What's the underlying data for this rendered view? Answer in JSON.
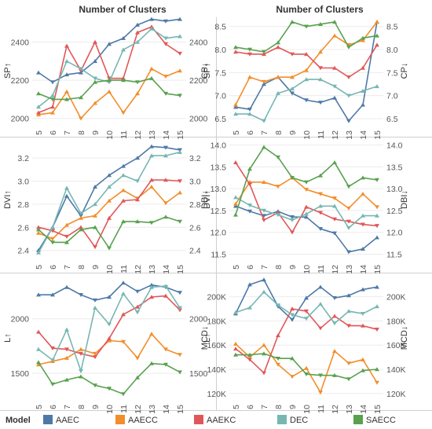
{
  "column_titles": [
    "Number of Clusters",
    "Number of Clusters"
  ],
  "legend": {
    "title": "Model",
    "items": [
      {
        "name": "AAEC",
        "color": "#4e79a7"
      },
      {
        "name": "AAECC",
        "color": "#f28e2b"
      },
      {
        "name": "AAEKC",
        "color": "#e15759"
      },
      {
        "name": "DEC",
        "color": "#76b7b2"
      },
      {
        "name": "SAECC",
        "color": "#59a14f"
      }
    ]
  },
  "chart_data": [
    {
      "type": "line",
      "ylabel": "SP↑",
      "x": [
        5,
        6,
        7,
        8,
        9,
        10,
        11,
        12,
        13,
        14,
        15
      ],
      "ylim": [
        1970,
        2530
      ],
      "yticks": [
        2000,
        2200,
        2400
      ],
      "ytick_labels": [
        "2000",
        "2200",
        "2400"
      ],
      "series": [
        {
          "name": "AAEC",
          "values": [
            2240,
            2190,
            2230,
            2240,
            2300,
            2390,
            2420,
            2490,
            2520,
            2510,
            2520
          ]
        },
        {
          "name": "AAECC",
          "values": [
            2020,
            2030,
            2140,
            2000,
            2080,
            2140,
            2030,
            2130,
            2260,
            2220,
            2250
          ]
        },
        {
          "name": "AAEKC",
          "values": [
            2030,
            2060,
            2380,
            2250,
            2400,
            2210,
            2210,
            2450,
            2480,
            2390,
            2340
          ]
        },
        {
          "name": "DEC",
          "values": [
            2060,
            2120,
            2300,
            2260,
            2210,
            2190,
            2360,
            2400,
            2470,
            2420,
            2430
          ]
        },
        {
          "name": "SAECC",
          "values": [
            2130,
            2100,
            2100,
            2110,
            2190,
            2200,
            2200,
            2190,
            2210,
            2130,
            2120
          ]
        }
      ]
    },
    {
      "type": "line",
      "ylabel": "CP↓",
      "x": [
        5,
        6,
        7,
        8,
        9,
        10,
        11,
        12,
        13,
        14,
        15
      ],
      "ylim": [
        6.38,
        8.7
      ],
      "yticks": [
        6.5,
        7.0,
        7.5,
        8.0,
        8.5
      ],
      "ytick_labels": [
        "6.5",
        "7.0",
        "7.5",
        "8.0",
        "8.5"
      ],
      "series": [
        {
          "name": "AAEC",
          "values": [
            6.75,
            6.7,
            7.25,
            7.4,
            7.05,
            6.9,
            6.85,
            6.95,
            6.45,
            6.8,
            8.6
          ]
        },
        {
          "name": "AAECC",
          "values": [
            6.8,
            7.4,
            7.3,
            7.4,
            7.4,
            7.55,
            7.95,
            8.3,
            8.1,
            8.2,
            8.6
          ]
        },
        {
          "name": "AAEKC",
          "values": [
            7.95,
            7.9,
            7.9,
            8.05,
            7.9,
            7.9,
            7.6,
            7.6,
            7.4,
            7.6,
            8.1
          ]
        },
        {
          "name": "DEC",
          "values": [
            6.6,
            6.6,
            6.45,
            7.05,
            7.15,
            7.35,
            7.35,
            7.2,
            7.0,
            7.1,
            7.2
          ]
        },
        {
          "name": "SAECC",
          "values": [
            8.05,
            8.0,
            7.95,
            8.15,
            8.6,
            8.5,
            8.55,
            8.6,
            8.05,
            8.25,
            8.3
          ]
        }
      ]
    },
    {
      "type": "line",
      "ylabel": "DVI↑",
      "x": [
        5,
        6,
        7,
        8,
        9,
        10,
        11,
        12,
        13,
        14,
        15
      ],
      "ylim": [
        2.33,
        3.35
      ],
      "yticks": [
        2.4,
        2.6,
        2.8,
        3.0,
        3.2
      ],
      "ytick_labels": [
        "2.4",
        "2.6",
        "2.8",
        "3.0",
        "3.2"
      ],
      "series": [
        {
          "name": "AAEC",
          "values": [
            2.4,
            2.6,
            2.87,
            2.7,
            2.95,
            3.05,
            3.13,
            3.2,
            3.3,
            3.29,
            3.27
          ]
        },
        {
          "name": "AAECC",
          "values": [
            2.55,
            2.5,
            2.62,
            2.68,
            2.7,
            2.83,
            2.92,
            2.85,
            2.95,
            2.81,
            2.9
          ]
        },
        {
          "name": "AAEKC",
          "values": [
            2.6,
            2.57,
            2.52,
            2.6,
            2.43,
            2.68,
            2.83,
            2.84,
            3.01,
            3.01,
            3.0
          ]
        },
        {
          "name": "DEC",
          "values": [
            2.38,
            2.6,
            2.94,
            2.72,
            2.8,
            2.95,
            3.05,
            3.0,
            3.22,
            3.22,
            3.25
          ]
        },
        {
          "name": "SAECC",
          "values": [
            2.58,
            2.47,
            2.47,
            2.58,
            2.6,
            2.42,
            2.65,
            2.65,
            2.64,
            2.69,
            2.65
          ]
        }
      ]
    },
    {
      "type": "line",
      "ylabel": "DBI↓",
      "x": [
        5,
        6,
        7,
        8,
        9,
        10,
        11,
        12,
        13,
        14,
        15
      ],
      "ylim": [
        11.4,
        14.1
      ],
      "yticks": [
        11.5,
        12.0,
        12.5,
        13.0,
        13.5,
        14.0
      ],
      "ytick_labels": [
        "11.5",
        "12.0",
        "12.5",
        "13.0",
        "13.5",
        "14.0"
      ],
      "series": [
        {
          "name": "AAEC",
          "values": [
            12.6,
            12.48,
            12.38,
            12.48,
            12.35,
            12.35,
            12.08,
            11.98,
            11.55,
            11.62,
            11.88
          ]
        },
        {
          "name": "AAECC",
          "values": [
            12.65,
            13.15,
            13.15,
            13.05,
            13.25,
            12.98,
            12.88,
            12.78,
            12.55,
            12.88,
            12.58
          ]
        },
        {
          "name": "AAEKC",
          "values": [
            13.6,
            13.1,
            12.28,
            12.45,
            12.0,
            12.58,
            12.45,
            12.3,
            12.25,
            12.18,
            12.15
          ]
        },
        {
          "name": "DEC",
          "values": [
            12.8,
            12.62,
            12.5,
            12.4,
            12.28,
            12.42,
            12.6,
            12.6,
            12.1,
            12.38,
            12.38
          ]
        },
        {
          "name": "SAECC",
          "values": [
            12.4,
            13.45,
            13.95,
            13.72,
            13.25,
            13.15,
            13.3,
            13.6,
            13.05,
            13.25,
            13.2
          ]
        }
      ]
    },
    {
      "type": "line",
      "ylabel": "L↑",
      "x": [
        5,
        6,
        7,
        8,
        9,
        10,
        11,
        12,
        13,
        14,
        15
      ],
      "ylim": [
        1270,
        2380
      ],
      "yticks": [
        1500,
        2000
      ],
      "ytick_labels": [
        "1500",
        "2000"
      ],
      "series": [
        {
          "name": "AAEC",
          "values": [
            2220,
            2220,
            2290,
            2220,
            2170,
            2200,
            2330,
            2250,
            2310,
            2290,
            2240
          ]
        },
        {
          "name": "AAECC",
          "values": [
            1580,
            1610,
            1640,
            1720,
            1680,
            1800,
            1790,
            1640,
            1860,
            1720,
            1670
          ]
        },
        {
          "name": "AAEKC",
          "values": [
            1880,
            1730,
            1720,
            1680,
            1650,
            1820,
            2040,
            2110,
            2200,
            2210,
            2080
          ]
        },
        {
          "name": "DEC",
          "values": [
            1720,
            1620,
            1900,
            1520,
            2100,
            1950,
            2230,
            2060,
            2290,
            2300,
            2100
          ]
        },
        {
          "name": "SAECC",
          "values": [
            1600,
            1400,
            1440,
            1470,
            1390,
            1360,
            1310,
            1460,
            1590,
            1580,
            1510
          ]
        }
      ]
    },
    {
      "type": "line",
      "ylabel": "MCD↓",
      "x": [
        5,
        6,
        7,
        8,
        9,
        10,
        11,
        12,
        13,
        14,
        15
      ],
      "ylim": [
        116000,
        216000
      ],
      "yticks": [
        120000,
        140000,
        160000,
        180000,
        200000
      ],
      "ytick_labels": [
        "120K",
        "140K",
        "160K",
        "180K",
        "200K"
      ],
      "series": [
        {
          "name": "AAEC",
          "values": [
            186000,
            210000,
            214000,
            192000,
            181000,
            199000,
            208000,
            199000,
            201000,
            206000,
            208000
          ]
        },
        {
          "name": "AAECC",
          "values": [
            161000,
            150000,
            160000,
            144000,
            134000,
            141000,
            121000,
            155000,
            145000,
            148000,
            129000
          ]
        },
        {
          "name": "AAEKC",
          "values": [
            157000,
            148000,
            137000,
            168000,
            190000,
            188000,
            174000,
            184000,
            176000,
            176000,
            173000
          ]
        },
        {
          "name": "DEC",
          "values": [
            187000,
            191000,
            204000,
            193000,
            185000,
            182000,
            194000,
            178000,
            188000,
            186000,
            192000
          ]
        },
        {
          "name": "SAECC",
          "values": [
            152000,
            152000,
            153000,
            149000,
            149000,
            136000,
            135000,
            135000,
            132000,
            139000,
            140000
          ]
        }
      ]
    }
  ]
}
